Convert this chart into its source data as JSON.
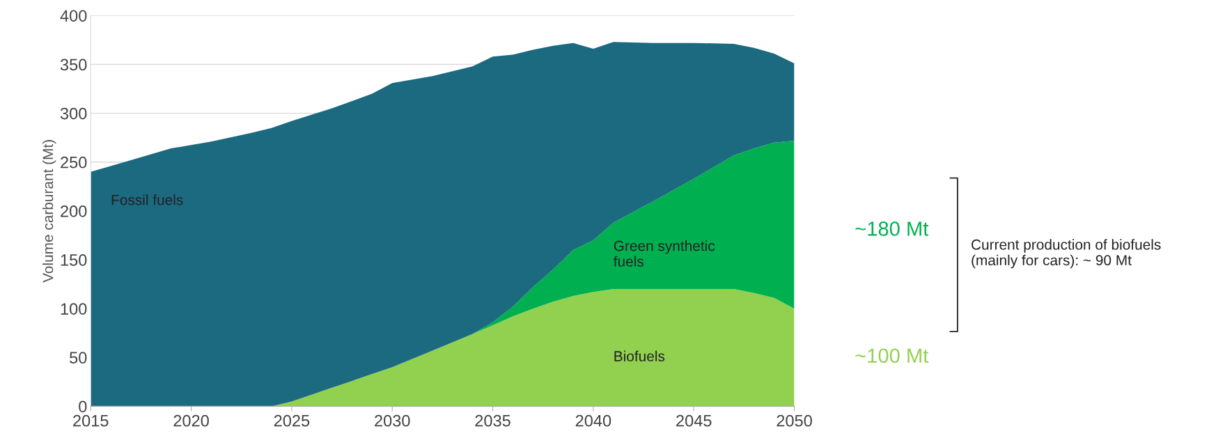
{
  "chart_data": {
    "type": "area",
    "stacked": true,
    "ylabel": "Volume carburant (Mt)",
    "x": [
      2015,
      2017,
      2019,
      2021,
      2023,
      2024,
      2025,
      2027,
      2029,
      2030,
      2032,
      2034,
      2035,
      2036,
      2037,
      2038,
      2039,
      2040,
      2041,
      2043,
      2045,
      2047,
      2048,
      2049,
      2050
    ],
    "series": [
      {
        "name": "Biofuels",
        "color": "#92d050",
        "values": [
          0,
          0,
          0,
          0,
          0,
          0,
          5,
          19,
          33,
          40,
          57,
          74,
          83,
          92,
          100,
          107,
          113,
          117,
          120,
          120,
          120,
          120,
          116,
          111,
          100
        ]
      },
      {
        "name": "Green synthetic fuels",
        "color": "#00b050",
        "values": [
          0,
          0,
          0,
          0,
          0,
          0,
          0,
          0,
          0,
          0,
          0,
          0,
          3,
          10,
          22,
          33,
          47,
          53,
          68,
          90,
          113,
          137,
          148,
          159,
          172
        ]
      },
      {
        "name": "Fossil fuels",
        "color": "#1b6a80",
        "values": [
          240,
          252,
          264,
          271,
          280,
          285,
          287,
          286,
          287,
          291,
          281,
          274,
          272,
          258,
          243,
          229,
          212,
          196,
          185,
          162,
          139,
          114,
          103,
          91,
          79
        ]
      }
    ],
    "xlim": [
      2015,
      2050
    ],
    "xticks": [
      2015,
      2020,
      2025,
      2030,
      2035,
      2040,
      2045,
      2050
    ],
    "ylim": [
      0,
      400
    ],
    "yticks": [
      0,
      50,
      100,
      150,
      200,
      250,
      300,
      350,
      400
    ],
    "grid": "y",
    "legend": false,
    "annotations": [
      "~180 Mt",
      "~100 Mt",
      "Current production of biofuels (mainly for cars): ~ 90 Mt"
    ]
  }
}
